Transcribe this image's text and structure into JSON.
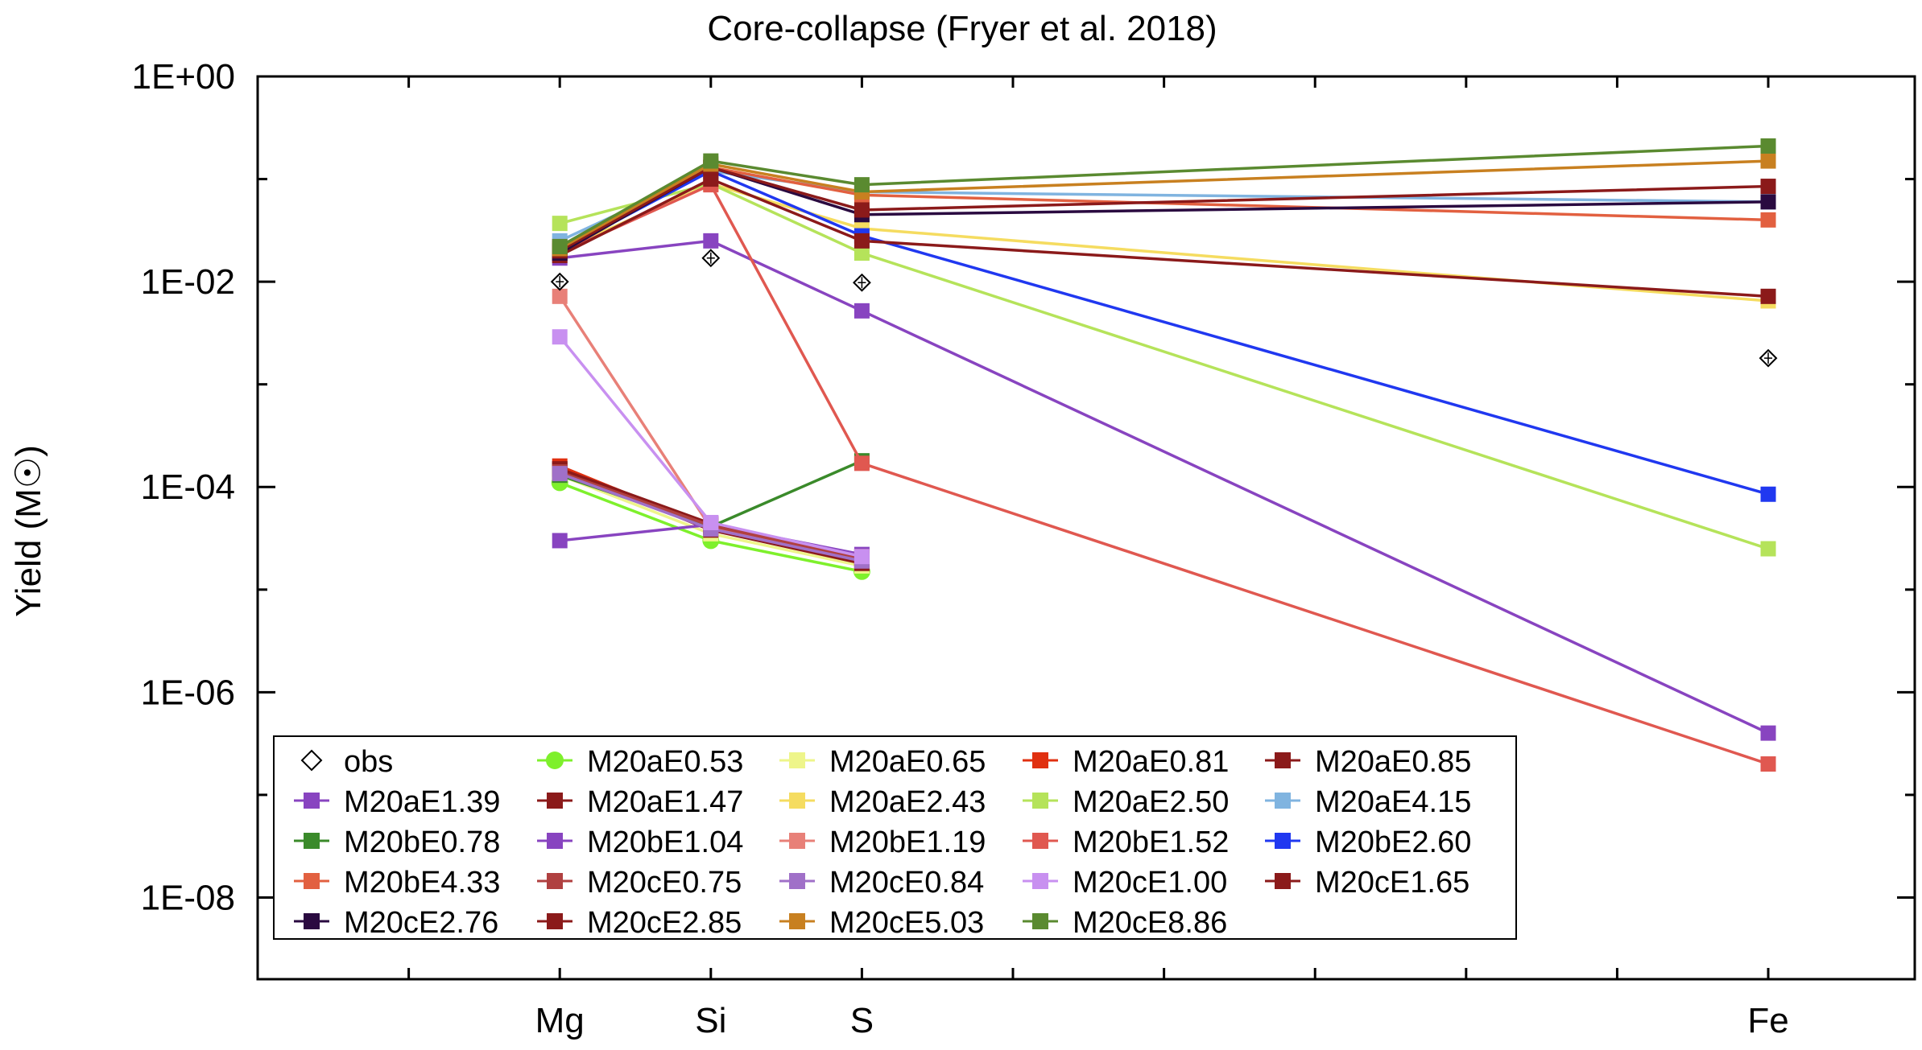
{
  "chart_data": {
    "type": "line",
    "title": "Core-collapse (Fryer et al. 2018)",
    "xlabel": "",
    "ylabel": "Yield (M☉)",
    "yscale": "log",
    "ylim": [
      1.6e-09,
      1.0
    ],
    "categories": [
      "Mg",
      "Si",
      "S",
      "Fe"
    ],
    "category_positions": [
      3,
      4,
      5,
      11
    ],
    "xlim": [
      1,
      11.97
    ],
    "ytick_labels": [
      "1E+00",
      "1E-02",
      "1E-04",
      "1E-06",
      "1E-08"
    ],
    "ytick_values": [
      1,
      0.01,
      0.0001,
      1e-06,
      1e-08
    ],
    "grid": false,
    "legend_position": "bottom-left",
    "legend_columns": 5,
    "observations": {
      "name": "obs",
      "marker": "open-diamond",
      "color": "#000000",
      "points": [
        {
          "x": "Mg",
          "y": 0.01
        },
        {
          "x": "Si",
          "y": 0.017
        },
        {
          "x": "S",
          "y": 0.0098
        },
        {
          "x": "Fe",
          "y": 0.0018
        }
      ]
    },
    "series": [
      {
        "name": "M20aE0.53",
        "color": "#7ef02c",
        "marker": "circle",
        "values": [
          0.00011,
          3e-05,
          1.5e-05,
          null
        ]
      },
      {
        "name": "M20aE0.65",
        "color": "#eef58a",
        "marker": "square",
        "values": [
          0.00013,
          3.5e-05,
          1.7e-05,
          null
        ]
      },
      {
        "name": "M20aE0.81",
        "color": "#e03010",
        "marker": "square",
        "values": [
          0.00016,
          4e-05,
          1.9e-05,
          null
        ]
      },
      {
        "name": "M20aE0.85",
        "color": "#8b1a1a",
        "marker": "square",
        "values": [
          0.00015,
          3.8e-05,
          1.8e-05,
          null
        ]
      },
      {
        "name": "M20aE1.39",
        "color": "#8844c0",
        "marker": "square",
        "values": [
          3e-05,
          4.3e-05,
          2.2e-05,
          null
        ]
      },
      {
        "name": "M20aE1.47",
        "color": "#8b1a1a",
        "marker": "square",
        "values": [
          0.00015,
          4.4e-05,
          2.1e-05,
          null
        ]
      },
      {
        "name": "M20aE2.43",
        "color": "#f5dc60",
        "marker": "square",
        "values": [
          0.02,
          0.09,
          0.033,
          0.0065
        ]
      },
      {
        "name": "M20aE2.50",
        "color": "#b5e35a",
        "marker": "square",
        "values": [
          0.037,
          0.09,
          0.019,
          2.5e-05
        ]
      },
      {
        "name": "M20aE4.15",
        "color": "#80b4e0",
        "marker": "square",
        "values": [
          0.025,
          0.12,
          0.075,
          0.06
        ]
      },
      {
        "name": "M20bE0.78",
        "color": "#3a8a2a",
        "marker": "square",
        "values": [
          0.00013,
          4.1e-05,
          0.00018,
          null
        ]
      },
      {
        "name": "M20bE1.04",
        "color": "#8844c0",
        "marker": "square",
        "values": [
          0.017,
          0.025,
          0.0052,
          4e-07
        ]
      },
      {
        "name": "M20bE1.19",
        "color": "#e88078",
        "marker": "square",
        "values": [
          0.0072,
          4e-05,
          2e-05,
          null
        ]
      },
      {
        "name": "M20bE1.52",
        "color": "#e05850",
        "marker": "square",
        "values": [
          0.019,
          0.088,
          0.00017,
          2e-07
        ]
      },
      {
        "name": "M20bE2.60",
        "color": "#2038f0",
        "marker": "square",
        "values": [
          0.02,
          0.12,
          0.028,
          8.5e-05
        ]
      },
      {
        "name": "M20bE4.33",
        "color": "#e26040",
        "marker": "square",
        "values": [
          0.022,
          0.13,
          0.07,
          0.04
        ]
      },
      {
        "name": "M20cE0.75",
        "color": "#b04040",
        "marker": "square",
        "values": [
          0.00014,
          4.2e-05,
          2e-05,
          null
        ]
      },
      {
        "name": "M20cE0.84",
        "color": "#a070c8",
        "marker": "square",
        "values": [
          0.000135,
          3.9e-05,
          1.9e-05,
          null
        ]
      },
      {
        "name": "M20cE1.00",
        "color": "#c890f0",
        "marker": "square",
        "values": [
          0.0029,
          4.5e-05,
          2.1e-05,
          null
        ]
      },
      {
        "name": "M20cE1.65",
        "color": "#8b1a1a",
        "marker": "square",
        "values": [
          0.018,
          0.1,
          0.025,
          0.0072
        ]
      },
      {
        "name": "M20cE2.76",
        "color": "#2a0a40",
        "marker": "square",
        "values": [
          0.019,
          0.13,
          0.045,
          0.06
        ]
      },
      {
        "name": "M20cE2.85",
        "color": "#8b1a1a",
        "marker": "square",
        "values": [
          0.02,
          0.13,
          0.05,
          0.085
        ]
      },
      {
        "name": "M20cE5.03",
        "color": "#c88020",
        "marker": "square",
        "values": [
          0.021,
          0.14,
          0.075,
          0.15
        ]
      },
      {
        "name": "M20cE8.86",
        "color": "#5a8a30",
        "marker": "square",
        "values": [
          0.022,
          0.15,
          0.088,
          0.21
        ]
      }
    ],
    "legend_order": [
      "obs",
      "M20aE0.53",
      "M20aE0.65",
      "M20aE0.81",
      "M20aE0.85",
      "M20aE1.39",
      "M20aE1.47",
      "M20aE2.43",
      "M20aE2.50",
      "M20aE4.15",
      "M20bE0.78",
      "M20bE1.04",
      "M20bE1.19",
      "M20bE1.52",
      "M20bE2.60",
      "M20bE4.33",
      "M20cE0.75",
      "M20cE0.84",
      "M20cE1.00",
      "M20cE1.65",
      "M20cE2.76",
      "M20cE2.85",
      "M20cE5.03",
      "M20cE8.86"
    ]
  }
}
